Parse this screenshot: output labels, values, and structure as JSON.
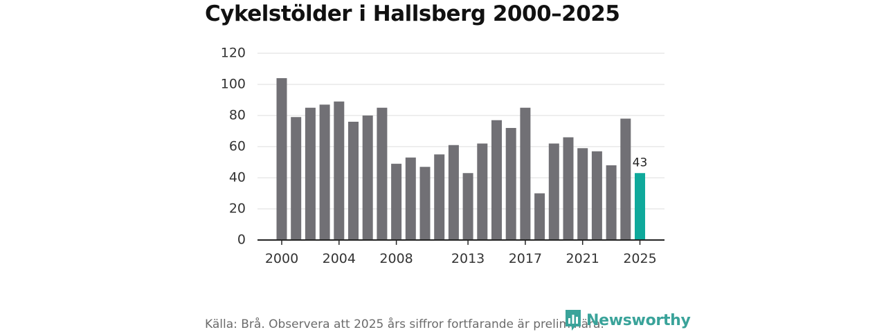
{
  "title": "Cykelstölder i Hallsberg 2000–2025",
  "chart_data": {
    "type": "bar",
    "title": "Cykelstölder i Hallsberg 2000–2025",
    "xlabel": "",
    "ylabel": "",
    "categories": [
      "2000",
      "2001",
      "2002",
      "2003",
      "2004",
      "2005",
      "2006",
      "2007",
      "2008",
      "2009",
      "2010",
      "2011",
      "2012",
      "2013",
      "2014",
      "2015",
      "2016",
      "2017",
      "2018",
      "2019",
      "2020",
      "2021",
      "2022",
      "2023",
      "2024",
      "2025"
    ],
    "values": [
      104,
      79,
      85,
      87,
      89,
      76,
      80,
      85,
      49,
      53,
      47,
      55,
      61,
      43,
      62,
      77,
      72,
      85,
      30,
      62,
      66,
      59,
      57,
      48,
      78,
      43
    ],
    "ylim": [
      0,
      120
    ],
    "yticks": [
      0,
      20,
      40,
      60,
      80,
      100,
      120
    ],
    "xtick_labels": [
      "2000",
      "2004",
      "2008",
      "2013",
      "2017",
      "2021",
      "2025"
    ],
    "highlight": {
      "category": "2025",
      "label": "43"
    },
    "grid": true,
    "colors": {
      "bar": "#717075",
      "highlight": "#0fa99b",
      "grid": "#dddddd",
      "axis": "#222222"
    }
  },
  "footer": {
    "source": "Källa: Brå. Observera att 2025 års siffror fortfarande är preliminära."
  },
  "logo": {
    "text": "Newsworthy",
    "icon": "newsworthy-logo-icon",
    "color": "#3aa39a"
  }
}
